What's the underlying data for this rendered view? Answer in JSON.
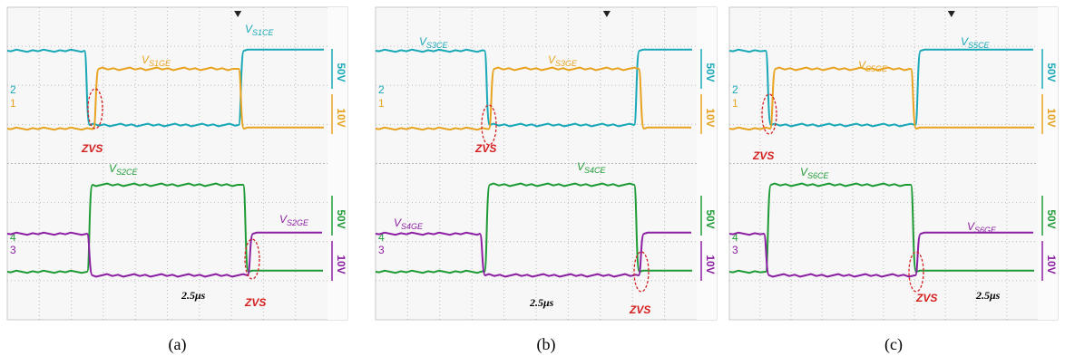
{
  "panels": [
    {
      "caption": "(a)",
      "timebase": "2.5μs",
      "zvs": [
        "ZVS",
        "ZVS"
      ],
      "channels": [
        "2",
        "1",
        "4",
        "3"
      ],
      "scales": [
        "50V",
        "10V",
        "50V",
        "10V"
      ],
      "traces": [
        {
          "main": "V",
          "sub": "S1CE"
        },
        {
          "main": "V",
          "sub": "S1GE"
        },
        {
          "main": "V",
          "sub": "S2CE"
        },
        {
          "main": "V",
          "sub": "S2GE"
        }
      ]
    },
    {
      "caption": "(b)",
      "timebase": "2.5μs",
      "zvs": [
        "ZVS",
        "ZVS"
      ],
      "channels": [
        "2",
        "1",
        "4",
        "3"
      ],
      "scales": [
        "50V",
        "10V",
        "50V",
        "10V"
      ],
      "traces": [
        {
          "main": "V",
          "sub": "S3CE"
        },
        {
          "main": "V",
          "sub": "S3GE"
        },
        {
          "main": "V",
          "sub": "S4CE"
        },
        {
          "main": "V",
          "sub": "S4GE"
        }
      ]
    },
    {
      "caption": "(c)",
      "timebase": "2.5μs",
      "zvs": [
        "ZVS",
        "ZVS"
      ],
      "channels": [
        "2",
        "1",
        "4",
        "3"
      ],
      "scales": [
        "50V",
        "10V",
        "50V",
        "10V"
      ],
      "traces": [
        {
          "main": "V",
          "sub": "S5CE"
        },
        {
          "main": "V",
          "sub": "S5GE"
        },
        {
          "main": "V",
          "sub": "S6CE"
        },
        {
          "main": "V",
          "sub": "S6GE"
        }
      ]
    }
  ]
}
